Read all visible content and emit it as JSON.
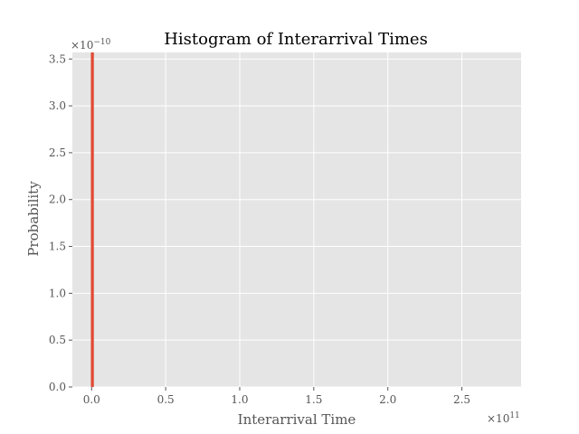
{
  "chart_data": {
    "type": "bar",
    "title": "Histogram of Interarrival Times",
    "xlabel": "Interarrival Time",
    "ylabel": "Probability",
    "x_scale_base": "×10",
    "x_scale_exponent": "11",
    "y_scale_base": "×10",
    "y_scale_exponent": "−10",
    "xlim": [
      -0.13,
      2.9
    ],
    "ylim": [
      0,
      3.57
    ],
    "x_ticks": [
      {
        "value": 0.0,
        "label": "0.0"
      },
      {
        "value": 0.5,
        "label": "0.5"
      },
      {
        "value": 1.0,
        "label": "1.0"
      },
      {
        "value": 1.5,
        "label": "1.5"
      },
      {
        "value": 2.0,
        "label": "2.0"
      },
      {
        "value": 2.5,
        "label": "2.5"
      }
    ],
    "y_ticks": [
      {
        "value": 0.0,
        "label": "0.0"
      },
      {
        "value": 0.5,
        "label": "0.5"
      },
      {
        "value": 1.0,
        "label": "1.0"
      },
      {
        "value": 1.5,
        "label": "1.5"
      },
      {
        "value": 2.0,
        "label": "2.0"
      },
      {
        "value": 2.5,
        "label": "2.5"
      },
      {
        "value": 3.0,
        "label": "3.0"
      },
      {
        "value": 3.5,
        "label": "3.5"
      }
    ],
    "bins": [
      {
        "x0": -0.005,
        "x1": 0.015,
        "value": 3.57
      }
    ],
    "grid": true,
    "style": "ggplot"
  },
  "colors": {
    "plot_background": "#e5e5e5",
    "grid": "#ffffff",
    "bar": "#e24a33",
    "tick_text": "#555555"
  }
}
